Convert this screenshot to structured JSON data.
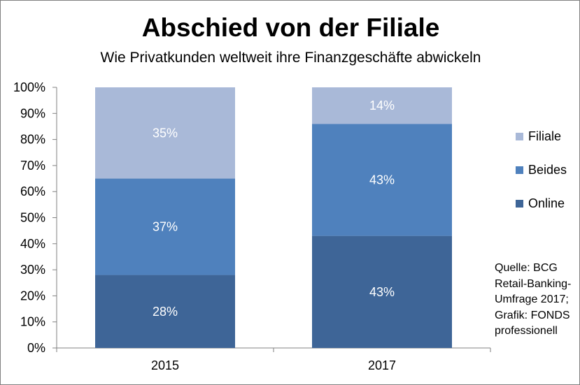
{
  "chart_data": {
    "type": "bar",
    "stacked": true,
    "title": "Abschied von der Filiale",
    "subtitle": "Wie Privatkunden weltweit ihre Finanzgeschäfte abwickeln",
    "categories": [
      "2015",
      "2017"
    ],
    "series": [
      {
        "name": "Online",
        "values": [
          28,
          43
        ],
        "color": "#3e6597"
      },
      {
        "name": "Beides",
        "values": [
          37,
          43
        ],
        "color": "#4f81bd"
      },
      {
        "name": "Filiale",
        "values": [
          35,
          14
        ],
        "color": "#a9b9d8"
      }
    ],
    "data_labels": [
      [
        "28%",
        "43%"
      ],
      [
        "37%",
        "43%"
      ],
      [
        "35%",
        "14%"
      ]
    ],
    "yticks": [
      "0%",
      "10%",
      "20%",
      "30%",
      "40%",
      "50%",
      "60%",
      "70%",
      "80%",
      "90%",
      "100%"
    ],
    "ylim": [
      0,
      100
    ],
    "legend_position": "right",
    "grid": false
  },
  "legend": [
    "Filiale",
    "Beides",
    "Online"
  ],
  "source_note": "Quelle: BCG Retail-Banking-Umfrage 2017; Grafik: FONDS professionell"
}
